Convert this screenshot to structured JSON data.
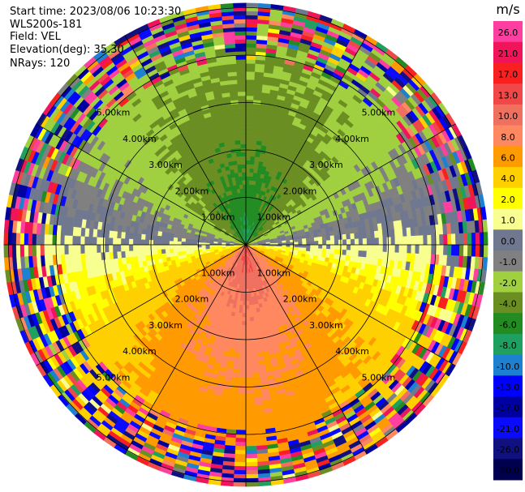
{
  "info": {
    "start_time": "Start time: 2023/08/06 10:23:30",
    "instrument": "WLS200s-181",
    "field": "Field: VEL",
    "elevation": "Elevation(deg): 35.30",
    "nrays": "NRays: 120"
  },
  "chart_data": {
    "type": "heatmap",
    "projection": "polar-ppi",
    "range_rings_km": [
      1,
      2,
      3,
      4,
      5
    ],
    "range_ring_labels": [
      "1.00km",
      "2.00km",
      "3.00km",
      "4.00km",
      "5.00km"
    ],
    "max_range_km": 5.1,
    "azimuth_spokes_deg": [
      0,
      30,
      60,
      90,
      120,
      150,
      180,
      210,
      240,
      270,
      300,
      330
    ],
    "velocity_pattern": {
      "toward_azimuth_deg": 180,
      "away_azimuth_deg": 0,
      "peak_toward_ms": 11,
      "peak_away_ms": -9,
      "noise_beyond_km": 3.9
    },
    "colorbar": {
      "unit": "m/s",
      "tick_labels": [
        "26.0",
        "21.0",
        "17.0",
        "13.0",
        "10.0",
        "8.0",
        "6.0",
        "4.0",
        "2.0",
        "1.0",
        "0.0",
        "-1.0",
        "-2.0",
        "-4.0",
        "-6.0",
        "-8.0",
        "-10.0",
        "-13.0",
        "-17.0",
        "-21.0",
        "-26.0",
        "-30.0"
      ],
      "colors": [
        "#ff3fa0",
        "#f0145a",
        "#f82020",
        "#f04848",
        "#f07060",
        "#ff8860",
        "#ff9a00",
        "#ffd000",
        "#ffff00",
        "#f8ff90",
        "#707890",
        "#808080",
        "#a0d040",
        "#6b8e23",
        "#228b22",
        "#20a060",
        "#1e80d0",
        "#0000ff",
        "#0000a0",
        "#0a0aff",
        "#101080",
        "#000050"
      ]
    }
  }
}
